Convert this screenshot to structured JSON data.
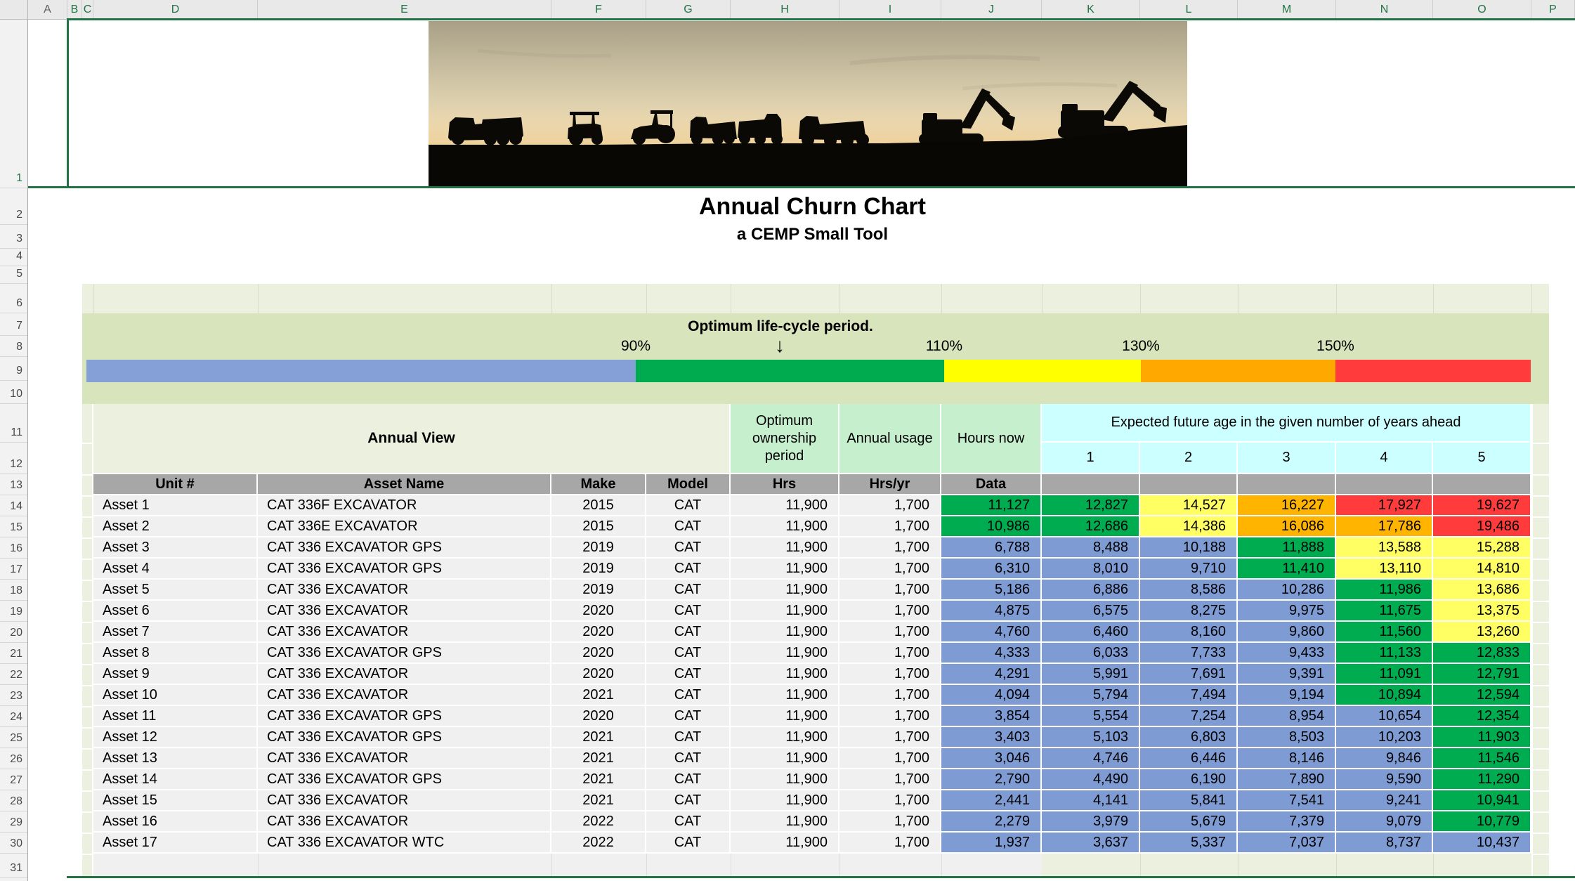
{
  "spreadsheet": {
    "column_letters": [
      "A",
      "B",
      "C",
      "D",
      "E",
      "F",
      "G",
      "H",
      "I",
      "J",
      "K",
      "L",
      "M",
      "N",
      "O",
      "P"
    ],
    "selected_columns": [
      "B",
      "C",
      "D",
      "E",
      "F",
      "G",
      "H",
      "I",
      "J",
      "K",
      "L",
      "M",
      "N",
      "O",
      "P"
    ],
    "row_numbers": [
      "1",
      "2",
      "3",
      "4",
      "5",
      "6",
      "7",
      "8",
      "9",
      "10",
      "11",
      "12",
      "13",
      "14",
      "15",
      "16",
      "17",
      "18",
      "19",
      "20",
      "21",
      "22",
      "23",
      "24",
      "25",
      "26",
      "27",
      "28",
      "29",
      "30",
      "31"
    ],
    "selected_rows": [
      "1"
    ],
    "selection_color": "#217346"
  },
  "title": "Annual Churn Chart",
  "subtitle": "a CEMP Small Tool",
  "banner": {
    "description": "construction-equipment-silhouettes-at-sunset"
  },
  "lifecycle": {
    "header": "Optimum life-cycle period.",
    "arrow": "↓",
    "labels": [
      "90%",
      "110%",
      "130%",
      "150%"
    ],
    "segments": [
      {
        "name": "below-90",
        "color": "#84a0d6"
      },
      {
        "name": "90-110-optimum",
        "color": "#00ab50"
      },
      {
        "name": "110-130",
        "color": "#ffff00"
      },
      {
        "name": "130-150",
        "color": "#ffa800"
      },
      {
        "name": "above-150",
        "color": "#ff3b3b"
      }
    ]
  },
  "table": {
    "annual_view_label": "Annual View",
    "optimum_ownership_label": "Optimum ownership period",
    "annual_usage_label": "Annual usage",
    "hours_now_label": "Hours now",
    "expected_header": "Expected future age in the given number of years ahead",
    "year_cols": [
      "1",
      "2",
      "3",
      "4",
      "5"
    ],
    "col_headers": [
      "Unit #",
      "Asset Name",
      "Make",
      "Model",
      "Hrs",
      "Hrs/yr",
      "Data"
    ],
    "cell_colors": {
      "blue": "#7e9cd3",
      "green": "#00ac50",
      "yellow": "#ffff64",
      "orange": "#ffb400",
      "red": "#ff3b3b"
    },
    "assets": [
      {
        "unit": "Asset 1",
        "name": "CAT 336F EXCAVATOR",
        "make": "2015",
        "model": "CAT",
        "hrs": "11,900",
        "hrs_yr": "1,700",
        "values": [
          "11,127",
          "12,827",
          "14,527",
          "16,227",
          "17,927",
          "19,627"
        ],
        "colors": [
          "green",
          "green",
          "yellow",
          "orange",
          "red",
          "red"
        ]
      },
      {
        "unit": "Asset 2",
        "name": "CAT 336E EXCAVATOR",
        "make": "2015",
        "model": "CAT",
        "hrs": "11,900",
        "hrs_yr": "1,700",
        "values": [
          "10,986",
          "12,686",
          "14,386",
          "16,086",
          "17,786",
          "19,486"
        ],
        "colors": [
          "green",
          "green",
          "yellow",
          "orange",
          "orange",
          "red"
        ]
      },
      {
        "unit": "Asset 3",
        "name": "CAT 336 EXCAVATOR GPS",
        "make": "2019",
        "model": "CAT",
        "hrs": "11,900",
        "hrs_yr": "1,700",
        "values": [
          "6,788",
          "8,488",
          "10,188",
          "11,888",
          "13,588",
          "15,288"
        ],
        "colors": [
          "blue",
          "blue",
          "blue",
          "green",
          "yellow",
          "yellow"
        ]
      },
      {
        "unit": "Asset 4",
        "name": "CAT 336 EXCAVATOR GPS",
        "make": "2019",
        "model": "CAT",
        "hrs": "11,900",
        "hrs_yr": "1,700",
        "values": [
          "6,310",
          "8,010",
          "9,710",
          "11,410",
          "13,110",
          "14,810"
        ],
        "colors": [
          "blue",
          "blue",
          "blue",
          "green",
          "yellow",
          "yellow"
        ]
      },
      {
        "unit": "Asset 5",
        "name": "CAT 336 EXCAVATOR",
        "make": "2019",
        "model": "CAT",
        "hrs": "11,900",
        "hrs_yr": "1,700",
        "values": [
          "5,186",
          "6,886",
          "8,586",
          "10,286",
          "11,986",
          "13,686"
        ],
        "colors": [
          "blue",
          "blue",
          "blue",
          "blue",
          "green",
          "yellow"
        ]
      },
      {
        "unit": "Asset 6",
        "name": "CAT 336 EXCAVATOR",
        "make": "2020",
        "model": "CAT",
        "hrs": "11,900",
        "hrs_yr": "1,700",
        "values": [
          "4,875",
          "6,575",
          "8,275",
          "9,975",
          "11,675",
          "13,375"
        ],
        "colors": [
          "blue",
          "blue",
          "blue",
          "blue",
          "green",
          "yellow"
        ]
      },
      {
        "unit": "Asset 7",
        "name": "CAT 336 EXCAVATOR",
        "make": "2020",
        "model": "CAT",
        "hrs": "11,900",
        "hrs_yr": "1,700",
        "values": [
          "4,760",
          "6,460",
          "8,160",
          "9,860",
          "11,560",
          "13,260"
        ],
        "colors": [
          "blue",
          "blue",
          "blue",
          "blue",
          "green",
          "yellow"
        ]
      },
      {
        "unit": "Asset 8",
        "name": "CAT 336 EXCAVATOR GPS",
        "make": "2020",
        "model": "CAT",
        "hrs": "11,900",
        "hrs_yr": "1,700",
        "values": [
          "4,333",
          "6,033",
          "7,733",
          "9,433",
          "11,133",
          "12,833"
        ],
        "colors": [
          "blue",
          "blue",
          "blue",
          "blue",
          "green",
          "green"
        ]
      },
      {
        "unit": "Asset 9",
        "name": "CAT 336 EXCAVATOR",
        "make": "2020",
        "model": "CAT",
        "hrs": "11,900",
        "hrs_yr": "1,700",
        "values": [
          "4,291",
          "5,991",
          "7,691",
          "9,391",
          "11,091",
          "12,791"
        ],
        "colors": [
          "blue",
          "blue",
          "blue",
          "blue",
          "green",
          "green"
        ]
      },
      {
        "unit": "Asset 10",
        "name": "CAT 336 EXCAVATOR",
        "make": "2021",
        "model": "CAT",
        "hrs": "11,900",
        "hrs_yr": "1,700",
        "values": [
          "4,094",
          "5,794",
          "7,494",
          "9,194",
          "10,894",
          "12,594"
        ],
        "colors": [
          "blue",
          "blue",
          "blue",
          "blue",
          "green",
          "green"
        ]
      },
      {
        "unit": "Asset 11",
        "name": "CAT 336 EXCAVATOR GPS",
        "make": "2020",
        "model": "CAT",
        "hrs": "11,900",
        "hrs_yr": "1,700",
        "values": [
          "3,854",
          "5,554",
          "7,254",
          "8,954",
          "10,654",
          "12,354"
        ],
        "colors": [
          "blue",
          "blue",
          "blue",
          "blue",
          "blue",
          "green"
        ]
      },
      {
        "unit": "Asset 12",
        "name": "CAT 336 EXCAVATOR GPS",
        "make": "2021",
        "model": "CAT",
        "hrs": "11,900",
        "hrs_yr": "1,700",
        "values": [
          "3,403",
          "5,103",
          "6,803",
          "8,503",
          "10,203",
          "11,903"
        ],
        "colors": [
          "blue",
          "blue",
          "blue",
          "blue",
          "blue",
          "green"
        ]
      },
      {
        "unit": "Asset 13",
        "name": "CAT 336 EXCAVATOR",
        "make": "2021",
        "model": "CAT",
        "hrs": "11,900",
        "hrs_yr": "1,700",
        "values": [
          "3,046",
          "4,746",
          "6,446",
          "8,146",
          "9,846",
          "11,546"
        ],
        "colors": [
          "blue",
          "blue",
          "blue",
          "blue",
          "blue",
          "green"
        ]
      },
      {
        "unit": "Asset 14",
        "name": "CAT 336 EXCAVATOR GPS",
        "make": "2021",
        "model": "CAT",
        "hrs": "11,900",
        "hrs_yr": "1,700",
        "values": [
          "2,790",
          "4,490",
          "6,190",
          "7,890",
          "9,590",
          "11,290"
        ],
        "colors": [
          "blue",
          "blue",
          "blue",
          "blue",
          "blue",
          "green"
        ]
      },
      {
        "unit": "Asset 15",
        "name": "CAT 336 EXCAVATOR",
        "make": "2021",
        "model": "CAT",
        "hrs": "11,900",
        "hrs_yr": "1,700",
        "values": [
          "2,441",
          "4,141",
          "5,841",
          "7,541",
          "9,241",
          "10,941"
        ],
        "colors": [
          "blue",
          "blue",
          "blue",
          "blue",
          "blue",
          "green"
        ]
      },
      {
        "unit": "Asset 16",
        "name": "CAT 336 EXCAVATOR",
        "make": "2022",
        "model": "CAT",
        "hrs": "11,900",
        "hrs_yr": "1,700",
        "values": [
          "2,279",
          "3,979",
          "5,679",
          "7,379",
          "9,079",
          "10,779"
        ],
        "colors": [
          "blue",
          "blue",
          "blue",
          "blue",
          "blue",
          "green"
        ]
      },
      {
        "unit": "Asset 17",
        "name": "CAT 336 EXCAVATOR WTC",
        "make": "2022",
        "model": "CAT",
        "hrs": "11,900",
        "hrs_yr": "1,700",
        "values": [
          "1,937",
          "3,637",
          "5,337",
          "7,037",
          "8,737",
          "10,437"
        ],
        "colors": [
          "blue",
          "blue",
          "blue",
          "blue",
          "blue",
          "blue"
        ]
      }
    ]
  }
}
